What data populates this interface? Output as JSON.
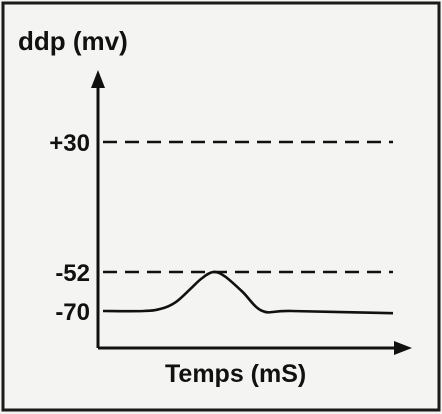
{
  "chart_data": {
    "type": "line",
    "title": "",
    "ylabel": "ddp (mv)",
    "xlabel": "Temps (mS)",
    "y_ticks": [
      {
        "value": 30,
        "label": "+30"
      },
      {
        "value": -52,
        "label": "-52"
      },
      {
        "value": -70,
        "label": "-70"
      }
    ],
    "reference_lines": [
      {
        "value": 30,
        "style": "dashed"
      },
      {
        "value": -52,
        "style": "dashed"
      }
    ],
    "ylim": [
      -90,
      70
    ],
    "xlim": [
      0,
      100
    ],
    "grid": false,
    "series": [
      {
        "x": [
          0,
          14,
          20,
          25,
          30,
          34,
          38,
          42,
          48,
          55,
          65,
          100
        ],
        "y": [
          -70,
          -70,
          -69,
          -66,
          -60,
          -55,
          -52,
          -54,
          -61,
          -70,
          -70,
          -71
        ]
      }
    ]
  }
}
